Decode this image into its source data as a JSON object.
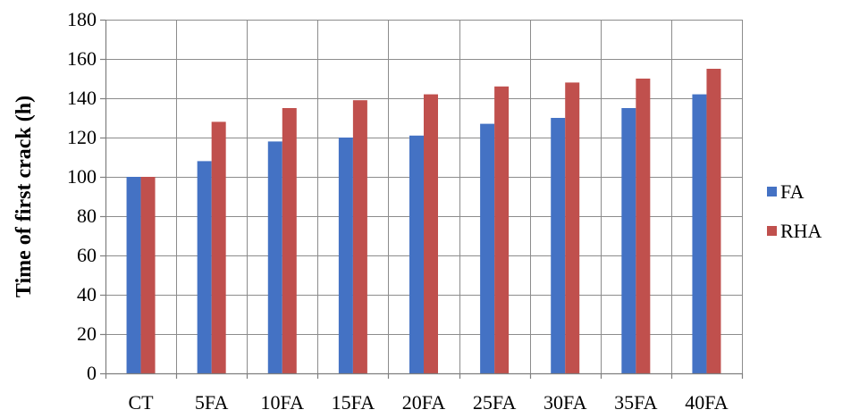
{
  "chart_data": {
    "type": "bar",
    "categories": [
      "CT",
      "5FA",
      "10FA",
      "15FA",
      "20FA",
      "25FA",
      "30FA",
      "35FA",
      "40FA"
    ],
    "series": [
      {
        "name": "FA",
        "color": "#4472C4",
        "values": [
          100,
          108,
          118,
          120,
          121,
          127,
          130,
          135,
          142
        ]
      },
      {
        "name": "RHA",
        "color": "#C0504D",
        "values": [
          100,
          128,
          135,
          139,
          142,
          146,
          148,
          150,
          155
        ]
      }
    ],
    "title": "",
    "xlabel": "",
    "ylabel": "Time of first crack (h)",
    "ylim": [
      0,
      180
    ],
    "yticks": [
      0,
      20,
      40,
      60,
      80,
      100,
      120,
      140,
      160,
      180
    ],
    "grid": true,
    "legend_position": "right"
  }
}
